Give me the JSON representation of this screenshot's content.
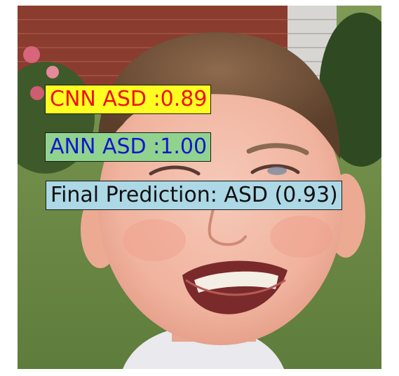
{
  "image": {
    "subject": "smiling-child-face-photo"
  },
  "annotations": {
    "cnn": {
      "text": "CNN ASD :0.89",
      "background": "#ffff22",
      "color": "#ee1111"
    },
    "ann": {
      "text": "ANN ASD :1.00",
      "background": "#8fd38f",
      "color": "#1616cc"
    },
    "final": {
      "text": "Final Prediction: ASD (0.93)",
      "background": "#add8e6",
      "color": "#111111"
    }
  }
}
